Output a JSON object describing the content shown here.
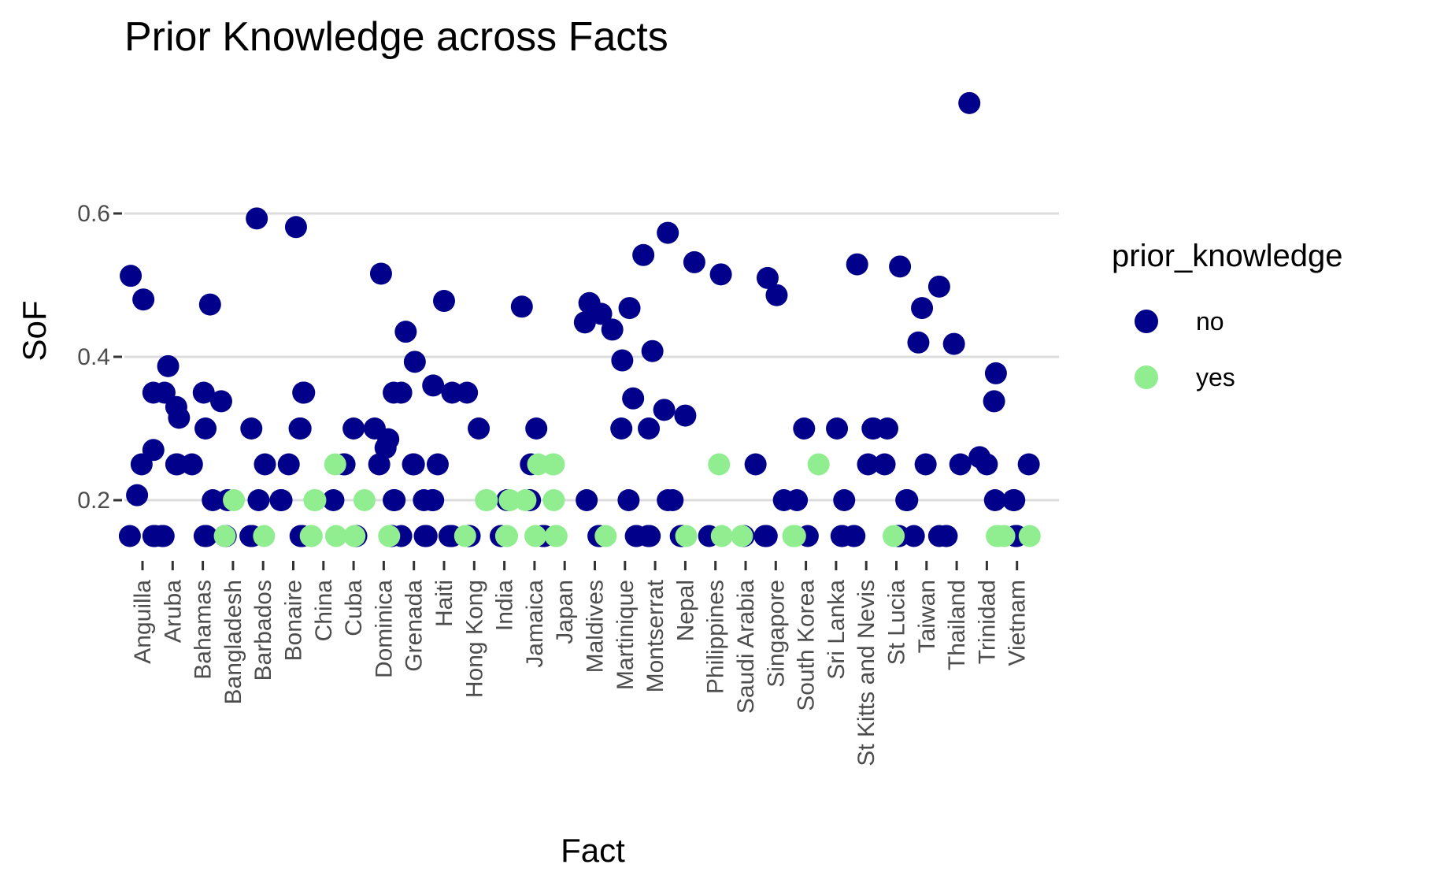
{
  "chart_data": {
    "type": "scatter",
    "title": "Prior Knowledge across Facts",
    "xlabel": "Fact",
    "ylabel": "SoF",
    "ylim": [
      0.1,
      0.78
    ],
    "y_ticks": [
      0.2,
      0.4,
      0.6
    ],
    "y_tick_labels": [
      "0.2",
      "0.4",
      "0.6"
    ],
    "grid": true,
    "legend": {
      "title": "prior_knowledge",
      "placement": "right",
      "entries": [
        {
          "label": "no",
          "color": "#00008B"
        },
        {
          "label": "yes",
          "color": "#90EE90"
        }
      ]
    },
    "categories": [
      "Anguilla",
      "Aruba",
      "Bahamas",
      "Bangladesh",
      "Barbados",
      "Bonaire",
      "China",
      "Cuba",
      "Dominica",
      "Grenada",
      "Haiti",
      "Hong Kong",
      "India",
      "Jamaica",
      "Japan",
      "Maldives",
      "Martinique",
      "Montserrat",
      "Nepal",
      "Philippines",
      "Saudi Arabia",
      "Singapore",
      "South Korea",
      "Sri Lanka",
      "St Kitts and Nevis",
      "St Lucia",
      "Taiwan",
      "Thailand",
      "Trinidad",
      "Vietnam"
    ],
    "series": [
      {
        "name": "no",
        "color": "#00008B",
        "points": [
          [
            "Anguilla",
            0.15
          ],
          [
            "Anguilla",
            0.15
          ],
          [
            "Anguilla",
            0.15
          ],
          [
            "Anguilla",
            0.15
          ],
          [
            "Anguilla",
            0.48
          ],
          [
            "Anguilla",
            0.513
          ],
          [
            "Anguilla",
            0.35
          ],
          [
            "Anguilla",
            0.27
          ],
          [
            "Anguilla",
            0.25
          ],
          [
            "Anguilla",
            0.207
          ],
          [
            "Aruba",
            0.15
          ],
          [
            "Aruba",
            0.15
          ],
          [
            "Aruba",
            0.15
          ],
          [
            "Aruba",
            0.387
          ],
          [
            "Aruba",
            0.35
          ],
          [
            "Aruba",
            0.33
          ],
          [
            "Aruba",
            0.315
          ],
          [
            "Aruba",
            0.25
          ],
          [
            "Aruba",
            0.25
          ],
          [
            "Bahamas",
            0.15
          ],
          [
            "Bahamas",
            0.15
          ],
          [
            "Bahamas",
            0.15
          ],
          [
            "Bahamas",
            0.473
          ],
          [
            "Bahamas",
            0.35
          ],
          [
            "Bahamas",
            0.3
          ],
          [
            "Bahamas",
            0.25
          ],
          [
            "Bahamas",
            0.2
          ],
          [
            "Bangladesh",
            0.15
          ],
          [
            "Bangladesh",
            0.15
          ],
          [
            "Bangladesh",
            0.338
          ],
          [
            "Bangladesh",
            0.2
          ],
          [
            "Barbados",
            0.15
          ],
          [
            "Barbados",
            0.15
          ],
          [
            "Barbados",
            0.15
          ],
          [
            "Barbados",
            0.593
          ],
          [
            "Barbados",
            0.3
          ],
          [
            "Barbados",
            0.25
          ],
          [
            "Barbados",
            0.2
          ],
          [
            "Bonaire",
            0.15
          ],
          [
            "Bonaire",
            0.15
          ],
          [
            "Bonaire",
            0.15
          ],
          [
            "Bonaire",
            0.581
          ],
          [
            "Bonaire",
            0.35
          ],
          [
            "Bonaire",
            0.35
          ],
          [
            "Bonaire",
            0.3
          ],
          [
            "Bonaire",
            0.3
          ],
          [
            "Bonaire",
            0.25
          ],
          [
            "Bonaire",
            0.2
          ],
          [
            "Bonaire",
            0.2
          ],
          [
            "China",
            0.2
          ],
          [
            "Cuba",
            0.15
          ],
          [
            "Cuba",
            0.15
          ],
          [
            "Cuba",
            0.3
          ],
          [
            "Cuba",
            0.25
          ],
          [
            "Cuba",
            0.25
          ],
          [
            "Dominica",
            0.15
          ],
          [
            "Dominica",
            0.15
          ],
          [
            "Dominica",
            0.516
          ],
          [
            "Dominica",
            0.35
          ],
          [
            "Dominica",
            0.3
          ],
          [
            "Dominica",
            0.285
          ],
          [
            "Dominica",
            0.273
          ],
          [
            "Dominica",
            0.25
          ],
          [
            "Dominica",
            0.2
          ],
          [
            "Dominica",
            0.2
          ],
          [
            "Grenada",
            0.15
          ],
          [
            "Grenada",
            0.15
          ],
          [
            "Grenada",
            0.15
          ],
          [
            "Grenada",
            0.15
          ],
          [
            "Grenada",
            0.435
          ],
          [
            "Grenada",
            0.393
          ],
          [
            "Grenada",
            0.35
          ],
          [
            "Grenada",
            0.25
          ],
          [
            "Grenada",
            0.25
          ],
          [
            "Grenada",
            0.2
          ],
          [
            "Haiti",
            0.15
          ],
          [
            "Haiti",
            0.15
          ],
          [
            "Haiti",
            0.15
          ],
          [
            "Haiti",
            0.15
          ],
          [
            "Haiti",
            0.478
          ],
          [
            "Haiti",
            0.36
          ],
          [
            "Haiti",
            0.35
          ],
          [
            "Haiti",
            0.25
          ],
          [
            "Haiti",
            0.2
          ],
          [
            "Haiti",
            0.2
          ],
          [
            "Hong Kong",
            0.15
          ],
          [
            "Hong Kong",
            0.15
          ],
          [
            "Hong Kong",
            0.35
          ],
          [
            "Hong Kong",
            0.3
          ],
          [
            "India",
            0.15
          ],
          [
            "India",
            0.2
          ],
          [
            "Jamaica",
            0.15
          ],
          [
            "Jamaica",
            0.15
          ],
          [
            "Jamaica",
            0.15
          ],
          [
            "Jamaica",
            0.47
          ],
          [
            "Jamaica",
            0.3
          ],
          [
            "Jamaica",
            0.25
          ],
          [
            "Jamaica",
            0.2
          ],
          [
            "Jamaica",
            0.2
          ],
          [
            "Maldives",
            0.15
          ],
          [
            "Maldives",
            0.15
          ],
          [
            "Maldives",
            0.475
          ],
          [
            "Maldives",
            0.46
          ],
          [
            "Maldives",
            0.448
          ],
          [
            "Maldives",
            0.2
          ],
          [
            "Martinique",
            0.15
          ],
          [
            "Martinique",
            0.15
          ],
          [
            "Martinique",
            0.468
          ],
          [
            "Martinique",
            0.438
          ],
          [
            "Martinique",
            0.395
          ],
          [
            "Martinique",
            0.342
          ],
          [
            "Martinique",
            0.3
          ],
          [
            "Martinique",
            0.2
          ],
          [
            "Montserrat",
            0.15
          ],
          [
            "Montserrat",
            0.15
          ],
          [
            "Montserrat",
            0.15
          ],
          [
            "Montserrat",
            0.573
          ],
          [
            "Montserrat",
            0.542
          ],
          [
            "Montserrat",
            0.408
          ],
          [
            "Montserrat",
            0.326
          ],
          [
            "Montserrat",
            0.3
          ],
          [
            "Montserrat",
            0.2
          ],
          [
            "Nepal",
            0.15
          ],
          [
            "Nepal",
            0.15
          ],
          [
            "Nepal",
            0.532
          ],
          [
            "Nepal",
            0.318
          ],
          [
            "Nepal",
            0.2
          ],
          [
            "Philippines",
            0.15
          ],
          [
            "Philippines",
            0.515
          ],
          [
            "Saudi Arabia",
            0.15
          ],
          [
            "Saudi Arabia",
            0.25
          ],
          [
            "Singapore",
            0.15
          ],
          [
            "Singapore",
            0.15
          ],
          [
            "Singapore",
            0.15
          ],
          [
            "Singapore",
            0.51
          ],
          [
            "Singapore",
            0.486
          ],
          [
            "Singapore",
            0.2
          ],
          [
            "South Korea",
            0.15
          ],
          [
            "South Korea",
            0.3
          ],
          [
            "South Korea",
            0.2
          ],
          [
            "Sri Lanka",
            0.15
          ],
          [
            "Sri Lanka",
            0.15
          ],
          [
            "Sri Lanka",
            0.2
          ],
          [
            "Sri Lanka",
            0.3
          ],
          [
            "St Kitts and Nevis",
            0.15
          ],
          [
            "St Kitts and Nevis",
            0.15
          ],
          [
            "St Kitts and Nevis",
            0.529
          ],
          [
            "St Kitts and Nevis",
            0.3
          ],
          [
            "St Kitts and Nevis",
            0.3
          ],
          [
            "St Kitts and Nevis",
            0.25
          ],
          [
            "St Lucia",
            0.15
          ],
          [
            "St Lucia",
            0.15
          ],
          [
            "St Lucia",
            0.526
          ],
          [
            "St Lucia",
            0.3
          ],
          [
            "St Lucia",
            0.25
          ],
          [
            "St Lucia",
            0.2
          ],
          [
            "St Lucia",
            0.2
          ],
          [
            "Taiwan",
            0.15
          ],
          [
            "Taiwan",
            0.15
          ],
          [
            "Taiwan",
            0.498
          ],
          [
            "Taiwan",
            0.468
          ],
          [
            "Taiwan",
            0.42
          ],
          [
            "Taiwan",
            0.25
          ],
          [
            "Thailand",
            0.15
          ],
          [
            "Thailand",
            0.15
          ],
          [
            "Thailand",
            0.754
          ],
          [
            "Thailand",
            0.418
          ],
          [
            "Thailand",
            0.25
          ],
          [
            "Trinidad",
            0.25
          ],
          [
            "Trinidad",
            0.26
          ],
          [
            "Trinidad",
            0.377
          ],
          [
            "Trinidad",
            0.338
          ],
          [
            "Trinidad",
            0.2
          ],
          [
            "Vietnam",
            0.15
          ],
          [
            "Vietnam",
            0.15
          ],
          [
            "Vietnam",
            0.15
          ],
          [
            "Vietnam",
            0.25
          ],
          [
            "Vietnam",
            0.2
          ],
          [
            "Vietnam",
            0.2
          ]
        ]
      },
      {
        "name": "yes",
        "color": "#90EE90",
        "points": [
          [
            "Bangladesh",
            0.15
          ],
          [
            "Bangladesh",
            0.2
          ],
          [
            "Barbados",
            0.15
          ],
          [
            "China",
            0.15
          ],
          [
            "China",
            0.15
          ],
          [
            "China",
            0.15
          ],
          [
            "China",
            0.25
          ],
          [
            "China",
            0.2
          ],
          [
            "China",
            0.2
          ],
          [
            "Cuba",
            0.15
          ],
          [
            "Cuba",
            0.2
          ],
          [
            "Dominica",
            0.15
          ],
          [
            "Hong Kong",
            0.15
          ],
          [
            "Hong Kong",
            0.2
          ],
          [
            "Hong Kong",
            0.2
          ],
          [
            "India",
            0.15
          ],
          [
            "India",
            0.15
          ],
          [
            "India",
            0.2
          ],
          [
            "Jamaica",
            0.15
          ],
          [
            "Jamaica",
            0.25
          ],
          [
            "Jamaica",
            0.2
          ],
          [
            "Japan",
            0.15
          ],
          [
            "Japan",
            0.15
          ],
          [
            "Japan",
            0.25
          ],
          [
            "Japan",
            0.25
          ],
          [
            "Japan",
            0.2
          ],
          [
            "Maldives",
            0.15
          ],
          [
            "Nepal",
            0.15
          ],
          [
            "Philippines",
            0.15
          ],
          [
            "Philippines",
            0.25
          ],
          [
            "Saudi Arabia",
            0.15
          ],
          [
            "South Korea",
            0.15
          ],
          [
            "South Korea",
            0.15
          ],
          [
            "South Korea",
            0.15
          ],
          [
            "South Korea",
            0.25
          ],
          [
            "St Lucia",
            0.15
          ],
          [
            "Trinidad",
            0.15
          ],
          [
            "Trinidad",
            0.15
          ],
          [
            "Vietnam",
            0.15
          ],
          [
            "Vietnam",
            0.15
          ]
        ]
      }
    ]
  }
}
